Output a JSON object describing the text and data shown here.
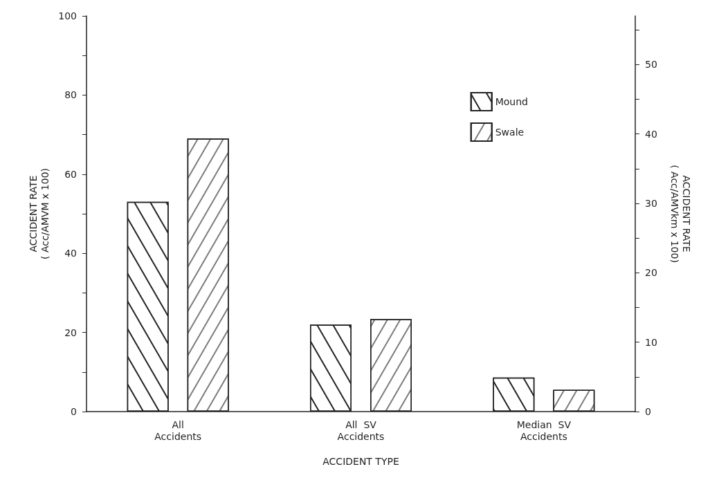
{
  "chart_data": {
    "type": "bar",
    "xlabel": "ACCIDENT TYPE",
    "ylabel": "ACCIDENT RATE\n( Acc/AMVM x 100)",
    "y2label": "ACCIDENT RATE\n( Acc/AMVkm x 100)",
    "categories": [
      "All\nAccidents",
      "All  SV\nAccidents",
      "Median  SV\nAccidents"
    ],
    "series": [
      {
        "name": "Mound",
        "color": "#ffffff",
        "values": [
          53,
          22,
          8.6
        ]
      },
      {
        "name": "Swale",
        "color": "#ffffff",
        "values": [
          69,
          23.4,
          5.5
        ]
      }
    ],
    "ylim": [
      0,
      100
    ],
    "yticks": [
      0,
      {
        "value": 10,
        "label": null
      },
      20,
      {
        "value": 30,
        "label": null
      },
      40,
      {
        "value": 50,
        "label": null
      },
      60,
      {
        "value": 70,
        "label": null
      },
      80,
      {
        "value": 90,
        "label": null
      },
      100
    ],
    "y2lim": [
      0,
      57
    ],
    "y2ticks": [
      0,
      {
        "value": 5,
        "label": null
      },
      10,
      {
        "value": 15,
        "label": null
      },
      20,
      {
        "value": 25,
        "label": null
      },
      30,
      {
        "value": 35,
        "label": null
      },
      40,
      {
        "value": 45,
        "label": null
      },
      50,
      {
        "value": 55,
        "label": null
      }
    ],
    "grid": false,
    "legend": "top right"
  }
}
